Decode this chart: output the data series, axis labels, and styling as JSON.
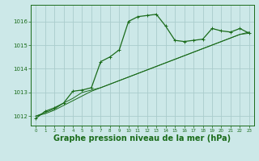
{
  "background_color": "#cce8e8",
  "grid_color": "#aacccc",
  "line_color": "#1a6b1a",
  "marker_color": "#1a6b1a",
  "xlabel": "Graphe pression niveau de la mer (hPa)",
  "xlabel_fontsize": 7,
  "ylim": [
    1011.6,
    1016.7
  ],
  "xlim": [
    -0.5,
    23.5
  ],
  "yticks": [
    1012,
    1013,
    1014,
    1015,
    1016
  ],
  "xticks": [
    0,
    1,
    2,
    3,
    4,
    5,
    6,
    7,
    8,
    9,
    10,
    11,
    12,
    13,
    14,
    15,
    16,
    17,
    18,
    19,
    20,
    21,
    22,
    23
  ],
  "curve1_x": [
    0,
    1,
    2,
    3,
    4,
    5,
    6,
    7,
    8,
    9,
    10,
    11,
    12,
    13,
    14,
    15,
    16,
    17,
    18,
    19,
    20,
    21,
    22,
    23
  ],
  "curve1_y": [
    1011.9,
    1012.2,
    1012.35,
    1012.55,
    1013.05,
    1013.1,
    1013.2,
    1014.3,
    1014.5,
    1014.8,
    1016.0,
    1016.2,
    1016.25,
    1016.3,
    1015.8,
    1015.2,
    1015.15,
    1015.2,
    1015.25,
    1015.7,
    1015.6,
    1015.55,
    1015.7,
    1015.5
  ],
  "curve2_x": [
    0,
    1,
    2,
    3,
    4,
    5,
    6,
    7,
    8,
    9,
    10,
    11,
    12,
    13,
    14,
    15,
    16,
    17,
    18,
    19,
    20,
    21,
    22,
    23
  ],
  "curve2_y": [
    1012.0,
    1012.15,
    1012.3,
    1012.55,
    1012.75,
    1013.0,
    1013.1,
    1013.2,
    1013.35,
    1013.5,
    1013.65,
    1013.8,
    1013.95,
    1014.1,
    1014.25,
    1014.4,
    1014.55,
    1014.7,
    1014.85,
    1015.0,
    1015.15,
    1015.3,
    1015.45,
    1015.55
  ],
  "curve3_x": [
    0,
    1,
    2,
    3,
    4,
    5,
    6,
    7,
    8,
    9,
    10,
    11,
    12,
    13,
    14,
    15,
    16,
    17,
    18,
    19,
    20,
    21,
    22,
    23
  ],
  "curve3_y": [
    1012.0,
    1012.1,
    1012.25,
    1012.45,
    1012.65,
    1012.85,
    1013.05,
    1013.2,
    1013.35,
    1013.5,
    1013.65,
    1013.8,
    1013.95,
    1014.1,
    1014.25,
    1014.4,
    1014.55,
    1014.7,
    1014.85,
    1015.0,
    1015.15,
    1015.3,
    1015.45,
    1015.5
  ]
}
